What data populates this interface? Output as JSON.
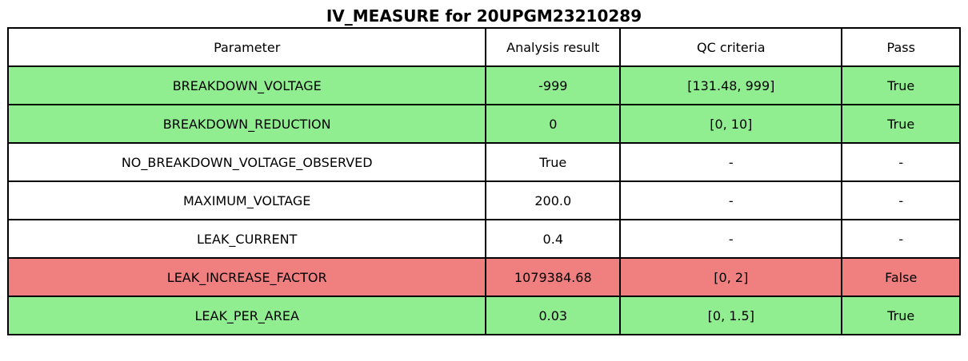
{
  "chart_data": {
    "type": "table",
    "title": "IV_MEASURE for 20UPGM23210289",
    "columns": [
      "Parameter",
      "Analysis result",
      "QC criteria",
      "Pass"
    ],
    "rows": [
      {
        "parameter": "BREAKDOWN_VOLTAGE",
        "result": "-999",
        "criteria": "[131.48, 999]",
        "pass": "True",
        "status": "pass"
      },
      {
        "parameter": "BREAKDOWN_REDUCTION",
        "result": "0",
        "criteria": "[0, 10]",
        "pass": "True",
        "status": "pass"
      },
      {
        "parameter": "NO_BREAKDOWN_VOLTAGE_OBSERVED",
        "result": "True",
        "criteria": "-",
        "pass": "-",
        "status": "neutral"
      },
      {
        "parameter": "MAXIMUM_VOLTAGE",
        "result": "200.0",
        "criteria": "-",
        "pass": "-",
        "status": "neutral"
      },
      {
        "parameter": "LEAK_CURRENT",
        "result": "0.4",
        "criteria": "-",
        "pass": "-",
        "status": "neutral"
      },
      {
        "parameter": "LEAK_INCREASE_FACTOR",
        "result": "1079384.68",
        "criteria": "[0, 2]",
        "pass": "False",
        "status": "fail"
      },
      {
        "parameter": "LEAK_PER_AREA",
        "result": "0.03",
        "criteria": "[0, 1.5]",
        "pass": "True",
        "status": "pass"
      }
    ],
    "colors": {
      "pass": "#90EE90",
      "fail": "#F08080",
      "neutral": "#FFFFFF",
      "border": "#000000",
      "text": "#000000"
    },
    "layout": {
      "grid": "on",
      "header_row": true
    }
  }
}
